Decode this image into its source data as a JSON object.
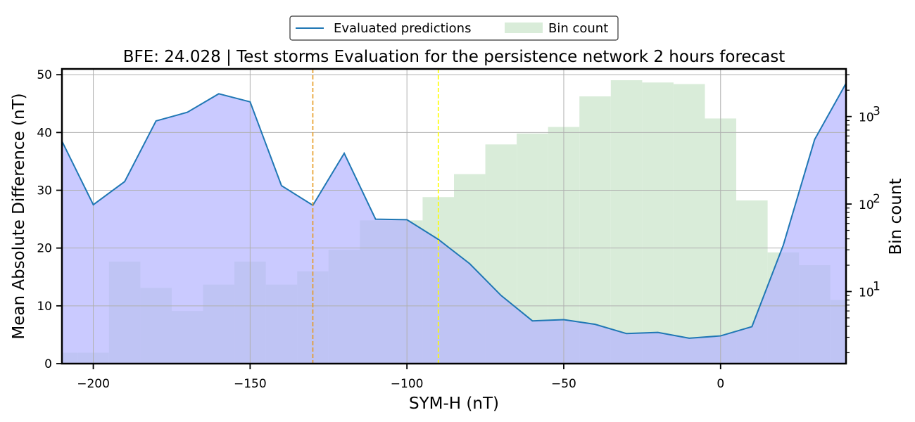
{
  "chart_data": {
    "type": "line",
    "title": "BFE: 24.028 | Test storms Evaluation for the persistence network 2 hours forecast",
    "xlabel": "SYM-H (nT)",
    "ylabel": "Mean Absolute Difference (nT)",
    "y2label": "Bin count",
    "xlim": [
      -210,
      40
    ],
    "ylim": [
      0,
      51
    ],
    "y2lim_log": [
      1.5,
      3500
    ],
    "x_ticks": [
      -200,
      -150,
      -100,
      -50,
      0
    ],
    "x_tick_labels": [
      "−200",
      "−150",
      "−100",
      "−50",
      "0"
    ],
    "y_ticks": [
      0,
      10,
      20,
      30,
      40,
      50
    ],
    "y_tick_labels": [
      "0",
      "10",
      "20",
      "30",
      "40",
      "50"
    ],
    "y2_ticks": [
      10,
      100,
      1000
    ],
    "y2_tick_labels": [
      "10",
      "10",
      "10"
    ],
    "y2_tick_exponents": [
      "1",
      "2",
      "3"
    ],
    "grid": true,
    "legend": "top-center",
    "vlines": [
      {
        "x": -130,
        "color": "#e69a20"
      },
      {
        "x": -90,
        "color": "#ffff00"
      }
    ],
    "series": [
      {
        "name": "Evaluated predictions",
        "type": "line",
        "color": "#1f77b4",
        "fill_color": "#b3b3ff",
        "x": [
          -210,
          -200,
          -190,
          -180,
          -170,
          -160,
          -150,
          -140,
          -130,
          -120,
          -110,
          -100,
          -90,
          -80,
          -70,
          -60,
          -50,
          -40,
          -30,
          -20,
          -10,
          0,
          10,
          20,
          30,
          40
        ],
        "y": [
          38.5,
          27.5,
          31.5,
          42,
          43.5,
          46.7,
          45.3,
          30.8,
          27.4,
          36.4,
          25,
          24.9,
          21.5,
          17.3,
          11.8,
          7.4,
          7.6,
          6.8,
          5.2,
          5.4,
          4.4,
          4.8,
          6.4,
          20.5,
          38.8,
          48.5
        ]
      },
      {
        "name": "Bin count",
        "type": "bar",
        "axis": "right-log",
        "color": "#d9ecd9",
        "bin_width": 10,
        "x": [
          -210,
          -200,
          -190,
          -180,
          -170,
          -160,
          -150,
          -140,
          -130,
          -120,
          -110,
          -100,
          -90,
          -80,
          -70,
          -60,
          -50,
          -40,
          -30,
          -20,
          -10,
          0,
          10,
          20,
          30,
          40
        ],
        "y": [
          2,
          2,
          22,
          11,
          6,
          12,
          22,
          12,
          17,
          30,
          65,
          65,
          120,
          220,
          480,
          640,
          760,
          1700,
          2600,
          2450,
          2350,
          950,
          110,
          28,
          20,
          8
        ]
      }
    ]
  }
}
